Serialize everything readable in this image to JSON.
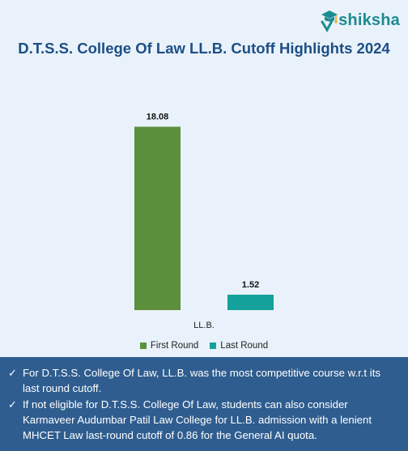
{
  "brand": {
    "logo_text": "shiksha"
  },
  "chart_data": {
    "type": "bar",
    "title": "D.T.S.S. College Of Law LL.B. Cutoff Highlights 2024",
    "categories": [
      "LL.B."
    ],
    "series": [
      {
        "name": "First Round",
        "values": [
          18.08
        ],
        "color": "#5b8f3c"
      },
      {
        "name": "Last Round",
        "values": [
          1.52
        ],
        "color": "#14a19b"
      }
    ],
    "ylim": [
      0,
      20
    ],
    "grid": false,
    "legend": "bottom",
    "xlabel": "",
    "ylabel": ""
  },
  "notes": [
    "For D.T.S.S. College Of Law, LL.B. was the most competitive course w.r.t its last round cutoff.",
    "If not eligible for D.T.S.S. College Of Law, students can also consider Karmaveer Audumbar Patil Law College for LL.B. admission with a lenient MHCET Law last-round cutoff of 0.86 for the General AI quota."
  ]
}
